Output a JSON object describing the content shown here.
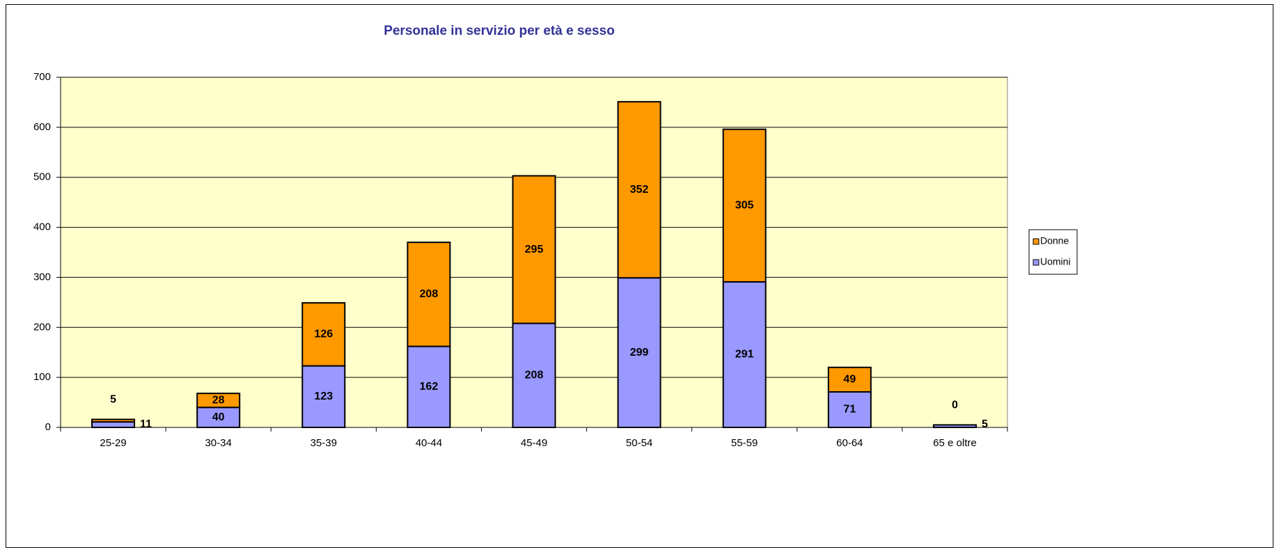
{
  "chart_data": {
    "type": "stacked_bar",
    "title": "Personale in servizio per età e sesso",
    "categories": [
      "25-29",
      "30-34",
      "35-39",
      "40-44",
      "45-49",
      "50-54",
      "55-59",
      "60-64",
      "65 e oltre"
    ],
    "series": [
      {
        "name": "Uomini",
        "color": "#9999ff",
        "values": [
          11,
          40,
          123,
          162,
          208,
          299,
          291,
          71,
          5
        ]
      },
      {
        "name": "Donne",
        "color": "#ff9900",
        "values": [
          5,
          28,
          126,
          208,
          295,
          352,
          305,
          49,
          0
        ]
      }
    ],
    "ylim": [
      0,
      700
    ],
    "yticks": [
      0,
      100,
      200,
      300,
      400,
      500,
      600,
      700
    ],
    "grid": true,
    "legend": "right"
  }
}
